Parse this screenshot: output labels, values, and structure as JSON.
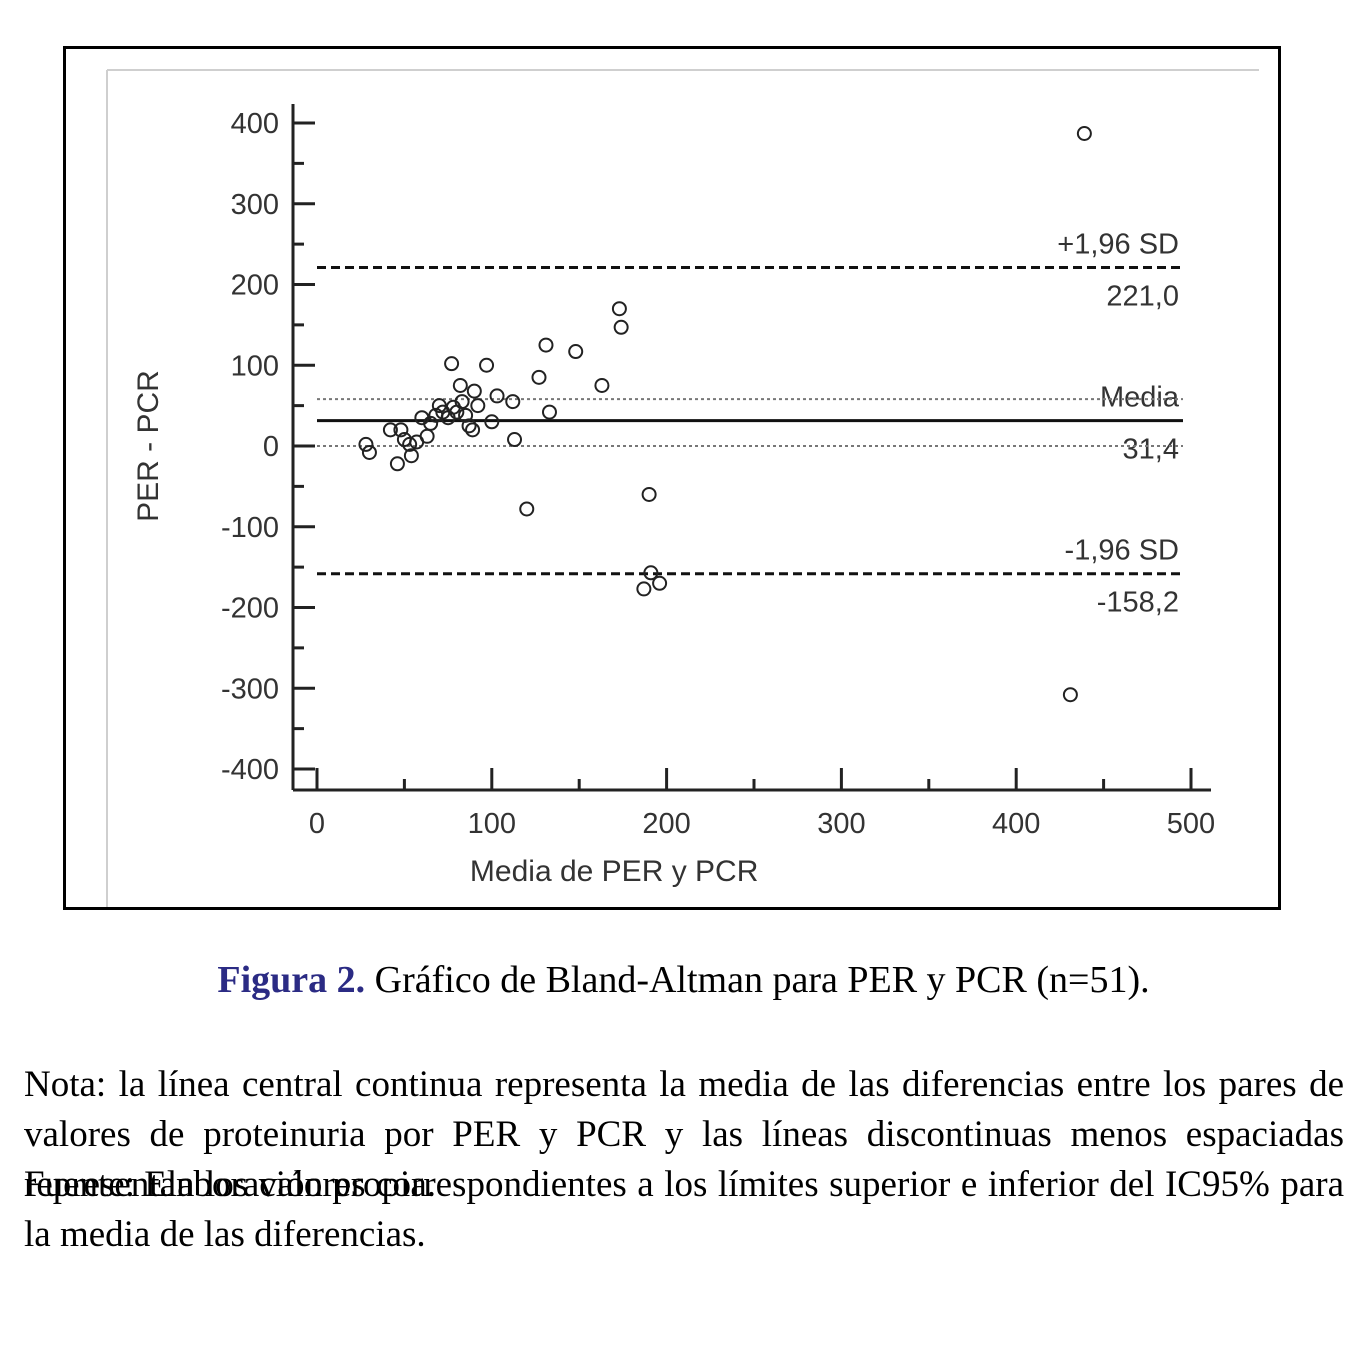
{
  "chart_data": {
    "type": "scatter",
    "xlabel": "Media de PER y PCR",
    "ylabel": "PER - PCR",
    "xlim": [
      0,
      500
    ],
    "ylim": [
      -400,
      400
    ],
    "x_ticks": [
      0,
      100,
      200,
      300,
      400,
      500
    ],
    "x_tick_labels": [
      "0",
      "100",
      "200",
      "300",
      "400",
      "500"
    ],
    "y_ticks": [
      400,
      300,
      200,
      100,
      0,
      -100,
      -200,
      -300,
      -400
    ],
    "y_tick_labels": [
      "400",
      "300",
      "200",
      "100",
      "0",
      "-100",
      "-200",
      "-300",
      "-400"
    ],
    "grid": false,
    "reference_lines": [
      {
        "value": 221.0,
        "style": "dashed",
        "label_top": "+1,96 SD",
        "label_bottom": "221,0"
      },
      {
        "value": 31.4,
        "style": "solid",
        "label_top": "Media",
        "label_bottom": "31,4"
      },
      {
        "value": 58,
        "style": "dotted",
        "label_top": "",
        "label_bottom": ""
      },
      {
        "value": 0,
        "style": "dotted",
        "label_top": "",
        "label_bottom": ""
      },
      {
        "value": -158.2,
        "style": "dashed",
        "label_top": "-1,96 SD",
        "label_bottom": "-158,2"
      }
    ],
    "points": [
      {
        "x": 28,
        "y": 2
      },
      {
        "x": 30,
        "y": -8
      },
      {
        "x": 42,
        "y": 20
      },
      {
        "x": 46,
        "y": -22
      },
      {
        "x": 48,
        "y": 20
      },
      {
        "x": 50,
        "y": 8
      },
      {
        "x": 53,
        "y": 2
      },
      {
        "x": 54,
        "y": -12
      },
      {
        "x": 57,
        "y": 5
      },
      {
        "x": 60,
        "y": 35
      },
      {
        "x": 63,
        "y": 12
      },
      {
        "x": 65,
        "y": 28
      },
      {
        "x": 68,
        "y": 38
      },
      {
        "x": 70,
        "y": 50
      },
      {
        "x": 72,
        "y": 42
      },
      {
        "x": 75,
        "y": 35
      },
      {
        "x": 77,
        "y": 102
      },
      {
        "x": 78,
        "y": 48
      },
      {
        "x": 80,
        "y": 42
      },
      {
        "x": 82,
        "y": 75
      },
      {
        "x": 83,
        "y": 55
      },
      {
        "x": 85,
        "y": 38
      },
      {
        "x": 87,
        "y": 25
      },
      {
        "x": 89,
        "y": 20
      },
      {
        "x": 90,
        "y": 68
      },
      {
        "x": 92,
        "y": 50
      },
      {
        "x": 97,
        "y": 100
      },
      {
        "x": 100,
        "y": 30
      },
      {
        "x": 103,
        "y": 62
      },
      {
        "x": 112,
        "y": 55
      },
      {
        "x": 113,
        "y": 8
      },
      {
        "x": 120,
        "y": -78
      },
      {
        "x": 127,
        "y": 85
      },
      {
        "x": 131,
        "y": 125
      },
      {
        "x": 133,
        "y": 42
      },
      {
        "x": 148,
        "y": 117
      },
      {
        "x": 163,
        "y": 75
      },
      {
        "x": 173,
        "y": 170
      },
      {
        "x": 174,
        "y": 147
      },
      {
        "x": 187,
        "y": -177
      },
      {
        "x": 190,
        "y": -60
      },
      {
        "x": 191,
        "y": -157
      },
      {
        "x": 196,
        "y": -170
      },
      {
        "x": 431,
        "y": -308
      },
      {
        "x": 439,
        "y": 387
      }
    ]
  },
  "caption": {
    "label": "Figura 2.",
    "text": " Gráfico de Bland-Altman para PER y PCR (n=51)."
  },
  "note": "Nota: la línea central continua representa la media de las diferencias entre los pares de valores de proteinuria por PER y PCR y las líneas discontinuas menos espaciadas representan los valores correspondientes a los límites superior e inferior del IC95% para la media de las diferencias.",
  "source": "Fuente: Elaboración propia."
}
